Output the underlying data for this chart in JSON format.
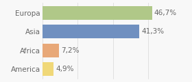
{
  "categories": [
    "America",
    "Africa",
    "Asia",
    "Europa"
  ],
  "values": [
    4.9,
    7.2,
    41.3,
    46.7
  ],
  "labels": [
    "4,9%",
    "7,2%",
    "41,3%",
    "46,7%"
  ],
  "bar_colors": [
    "#f0d878",
    "#e8a878",
    "#7090c0",
    "#b0c888"
  ],
  "xlim": [
    0,
    62
  ],
  "background_color": "#f8f8f8",
  "bar_height": 0.72,
  "label_fontsize": 7.5,
  "tick_fontsize": 7.5,
  "label_color": "#666666",
  "tick_color": "#666666"
}
